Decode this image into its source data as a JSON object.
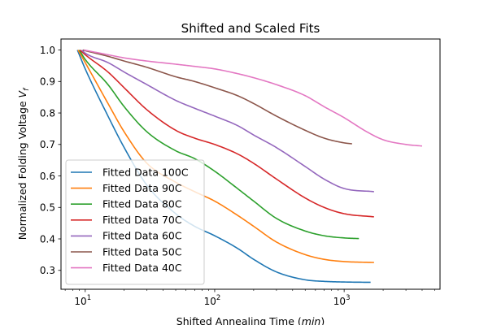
{
  "chart_data": {
    "type": "line",
    "title": "Shifted and Scaled Fits",
    "xlabel": "Shifted Annealing Time (min)",
    "xlabel_main": "Shifted Annealing Time ",
    "xlabel_unit": "min",
    "ylabel": "Normalized Folding Voltage V_f",
    "ylabel_main": "Normalized Folding Voltage ",
    "ylabel_symbol": "V",
    "ylabel_subscript": "f",
    "xscale": "log",
    "xlim": [
      6.5,
      5500
    ],
    "ylim": [
      0.24,
      1.035
    ],
    "xticks": [
      {
        "value": 10,
        "label": "10",
        "exp": "1"
      },
      {
        "value": 100,
        "label": "10",
        "exp": "2"
      },
      {
        "value": 1000,
        "label": "10",
        "exp": "3"
      }
    ],
    "yticks": [
      {
        "value": 0.3,
        "label": "0.3"
      },
      {
        "value": 0.4,
        "label": "0.4"
      },
      {
        "value": 0.5,
        "label": "0.5"
      },
      {
        "value": 0.6,
        "label": "0.6"
      },
      {
        "value": 0.7,
        "label": "0.7"
      },
      {
        "value": 0.8,
        "label": "0.8"
      },
      {
        "value": 0.9,
        "label": "0.9"
      },
      {
        "value": 1.0,
        "label": "1.0"
      }
    ],
    "grid": false,
    "legend_position": "lower-left",
    "series": [
      {
        "name": "Fitted Data 100C",
        "color": "#1f77b4",
        "x": [
          8.7,
          10,
          15,
          20,
          30,
          50,
          70,
          100,
          150,
          200,
          300,
          500,
          700,
          1000,
          1600
        ],
        "y": [
          1.0,
          0.94,
          0.79,
          0.69,
          0.57,
          0.48,
          0.44,
          0.41,
          0.37,
          0.335,
          0.295,
          0.27,
          0.265,
          0.263,
          0.262
        ]
      },
      {
        "name": "Fitted Data 90C",
        "color": "#ff7f0e",
        "x": [
          8.8,
          10,
          15,
          20,
          30,
          50,
          70,
          100,
          150,
          200,
          300,
          500,
          700,
          1000,
          1700
        ],
        "y": [
          1.0,
          0.96,
          0.83,
          0.74,
          0.64,
          0.58,
          0.55,
          0.52,
          0.475,
          0.44,
          0.39,
          0.35,
          0.335,
          0.328,
          0.325
        ]
      },
      {
        "name": "Fitted Data 80C",
        "color": "#2ca02c",
        "x": [
          9.0,
          10,
          15,
          20,
          30,
          50,
          70,
          100,
          150,
          200,
          300,
          500,
          700,
          1000,
          1300
        ],
        "y": [
          1.0,
          0.97,
          0.89,
          0.82,
          0.74,
          0.68,
          0.655,
          0.615,
          0.56,
          0.52,
          0.465,
          0.425,
          0.41,
          0.403,
          0.401
        ]
      },
      {
        "name": "Fitted Data 70C",
        "color": "#d62728",
        "x": [
          9.1,
          10,
          15,
          20,
          30,
          50,
          70,
          100,
          150,
          200,
          300,
          500,
          700,
          1000,
          1700
        ],
        "y": [
          1.0,
          0.985,
          0.93,
          0.88,
          0.81,
          0.745,
          0.72,
          0.7,
          0.67,
          0.64,
          0.59,
          0.53,
          0.5,
          0.48,
          0.47
        ]
      },
      {
        "name": "Fitted Data 60C",
        "color": "#9467bd",
        "x": [
          9.4,
          10,
          15,
          20,
          30,
          50,
          70,
          100,
          150,
          200,
          300,
          500,
          700,
          1000,
          1700
        ],
        "y": [
          1.0,
          0.99,
          0.96,
          0.93,
          0.89,
          0.84,
          0.815,
          0.79,
          0.76,
          0.73,
          0.69,
          0.63,
          0.59,
          0.56,
          0.55
        ]
      },
      {
        "name": "Fitted Data 50C",
        "color": "#8c564b",
        "x": [
          9.6,
          10,
          15,
          20,
          30,
          50,
          70,
          100,
          150,
          200,
          300,
          500,
          700,
          1000,
          1150
        ],
        "y": [
          1.0,
          0.998,
          0.98,
          0.965,
          0.945,
          0.915,
          0.9,
          0.88,
          0.855,
          0.83,
          0.79,
          0.745,
          0.72,
          0.705,
          0.702
        ]
      },
      {
        "name": "Fitted Data 40C",
        "color": "#e377c2",
        "x": [
          9.8,
          15,
          20,
          30,
          50,
          70,
          100,
          150,
          200,
          300,
          500,
          700,
          1000,
          1500,
          2000,
          3000,
          4000
        ],
        "y": [
          1.0,
          0.985,
          0.975,
          0.965,
          0.955,
          0.948,
          0.94,
          0.925,
          0.912,
          0.89,
          0.855,
          0.82,
          0.785,
          0.74,
          0.715,
          0.7,
          0.695
        ]
      }
    ]
  }
}
